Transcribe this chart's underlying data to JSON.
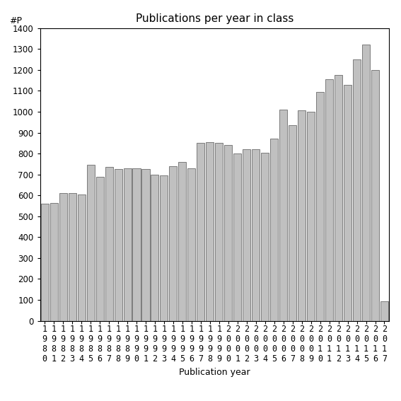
{
  "title": "Publications per year in class",
  "xlabel": "Publication year",
  "ylabel": "#P",
  "years": [
    "1980",
    "1981",
    "1982",
    "1983",
    "1984",
    "1985",
    "1986",
    "1987",
    "1988",
    "1989",
    "1990",
    "1991",
    "1992",
    "1993",
    "1994",
    "1995",
    "1996",
    "1997",
    "1998",
    "1999",
    "2000",
    "2001",
    "2002",
    "2003",
    "2004",
    "2005",
    "2006",
    "2007",
    "2008",
    "2009",
    "2010",
    "2011",
    "2012",
    "2013",
    "2014",
    "2015",
    "2016",
    "2017"
  ],
  "values": [
    560,
    565,
    610,
    610,
    605,
    745,
    690,
    735,
    725,
    730,
    730,
    725,
    700,
    695,
    740,
    760,
    730,
    850,
    855,
    850,
    840,
    800,
    820,
    820,
    805,
    870,
    1010,
    935,
    1005,
    1000,
    1095,
    1155,
    1175,
    1130,
    1250,
    1320,
    1200,
    95
  ],
  "bar_color": "#c0c0c0",
  "bar_edgecolor": "#555555",
  "ylim": [
    0,
    1400
  ],
  "yticks": [
    0,
    100,
    200,
    300,
    400,
    500,
    600,
    700,
    800,
    900,
    1000,
    1100,
    1200,
    1300,
    1400
  ],
  "background_color": "#ffffff",
  "title_fontsize": 11,
  "axis_label_fontsize": 9,
  "tick_fontsize": 8.5
}
